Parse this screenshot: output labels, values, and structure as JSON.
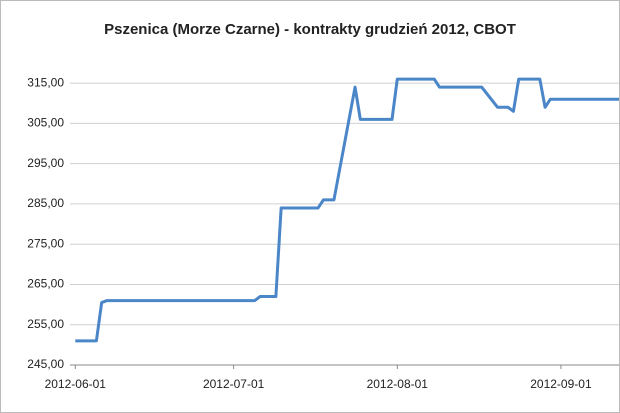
{
  "chart_data": {
    "type": "line",
    "title": "Pszenica (Morze Czarne) - kontrakty grudzień 2012, CBOT",
    "x": [
      "2012-06-01",
      "2012-06-05",
      "2012-06-06",
      "2012-06-07",
      "2012-07-05",
      "2012-07-06",
      "2012-07-09",
      "2012-07-10",
      "2012-07-17",
      "2012-07-18",
      "2012-07-20",
      "2012-07-24",
      "2012-07-25",
      "2012-07-31",
      "2012-08-01",
      "2012-08-08",
      "2012-08-09",
      "2012-08-17",
      "2012-08-20",
      "2012-08-22",
      "2012-08-23",
      "2012-08-24",
      "2012-08-28",
      "2012-08-29",
      "2012-08-30",
      "2012-09-12"
    ],
    "series": [
      {
        "name": "Pszenica",
        "color": "#4a86c8",
        "values": [
          251,
          251,
          260.5,
          261,
          261,
          262,
          262,
          284,
          284,
          286,
          286,
          314,
          306,
          306,
          316,
          316,
          314,
          314,
          309,
          309,
          308,
          316,
          316,
          309,
          311,
          311
        ]
      }
    ],
    "xlim": [
      "2012-05-31",
      "2012-09-12"
    ],
    "xticks": [
      "2012-06-01",
      "2012-07-01",
      "2012-08-01",
      "2012-09-01"
    ],
    "ylim": [
      245,
      320
    ],
    "yticks": [
      {
        "value": 245,
        "label": "245,00"
      },
      {
        "value": 255,
        "label": "255,00"
      },
      {
        "value": 265,
        "label": "265,00"
      },
      {
        "value": 275,
        "label": "275,00"
      },
      {
        "value": 285,
        "label": "285,00"
      },
      {
        "value": 295,
        "label": "295,00"
      },
      {
        "value": 305,
        "label": "305,00"
      },
      {
        "value": 315,
        "label": "315,00"
      }
    ],
    "grid": true
  }
}
